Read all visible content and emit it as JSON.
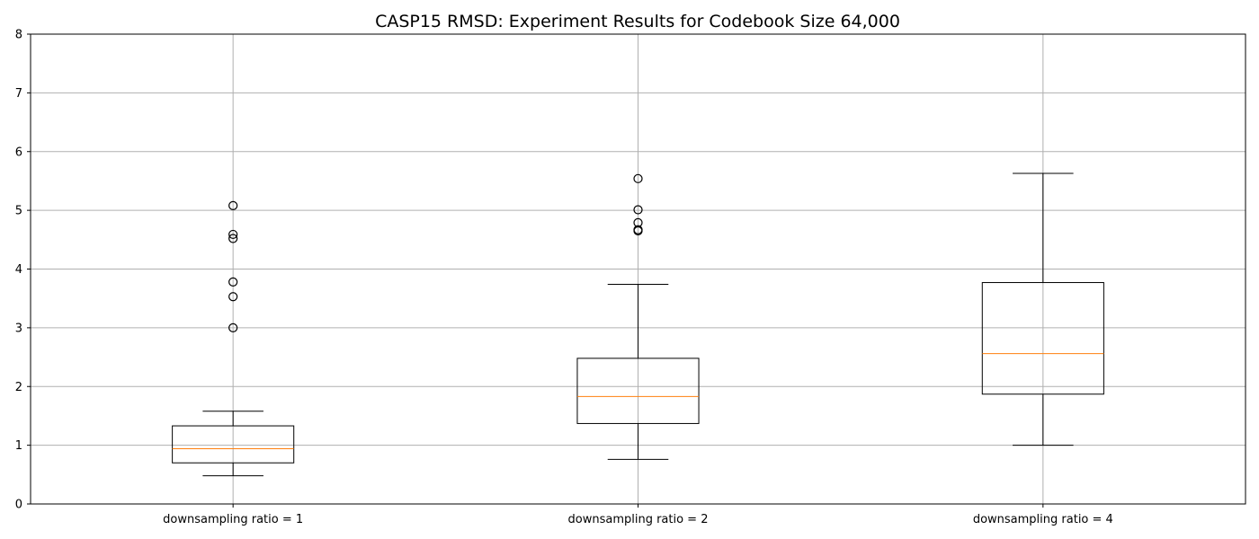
{
  "chart_data": {
    "type": "box",
    "title": "CASP15 RMSD: Experiment Results for Codebook Size 64,000",
    "xlabel": "",
    "ylabel": "",
    "ylim": [
      0,
      8
    ],
    "yticks": [
      0,
      1,
      2,
      3,
      4,
      5,
      6,
      7,
      8
    ],
    "grid": true,
    "categories": [
      "downsampling ratio = 1",
      "downsampling ratio = 2",
      "downsampling ratio = 4"
    ],
    "boxes": [
      {
        "whisker_low": 0.48,
        "q1": 0.7,
        "median": 0.94,
        "q3": 1.33,
        "whisker_high": 1.58,
        "outliers": [
          3.0,
          3.53,
          3.78,
          4.52,
          4.59,
          5.08
        ]
      },
      {
        "whisker_low": 0.76,
        "q1": 1.37,
        "median": 1.83,
        "q3": 2.48,
        "whisker_high": 3.74,
        "outliers": [
          4.65,
          4.67,
          4.79,
          5.01,
          5.54
        ]
      },
      {
        "whisker_low": 1.0,
        "q1": 1.87,
        "median": 2.56,
        "q3": 3.77,
        "whisker_high": 5.63,
        "outliers": []
      }
    ],
    "colors": {
      "box": "#000000",
      "median": "#ff7f0e",
      "grid": "#b0b0b0"
    }
  }
}
